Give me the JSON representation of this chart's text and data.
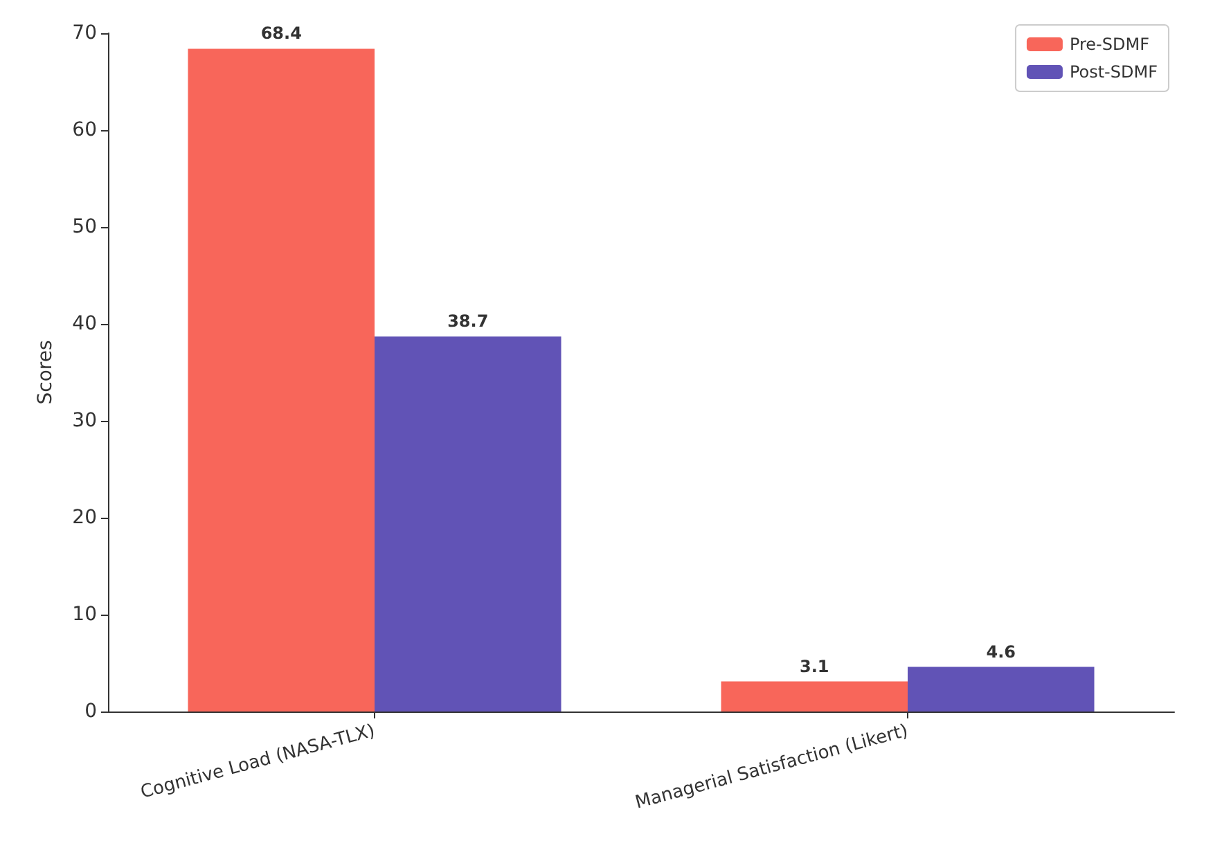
{
  "chart_data": {
    "type": "bar",
    "ylabel": "Scores",
    "categories": [
      "Cognitive Load (NASA-TLX)",
      "Managerial Satisfaction (Likert)"
    ],
    "series": [
      {
        "name": "Pre-SDMF",
        "color": "#f8665a",
        "values": [
          68.4,
          3.1
        ]
      },
      {
        "name": "Post-SDMF",
        "color": "#6153b6",
        "values": [
          38.7,
          4.6
        ]
      }
    ],
    "ylim": [
      0,
      70
    ],
    "yticks": [
      0,
      10,
      20,
      30,
      40,
      50,
      60,
      70
    ],
    "grid": false,
    "legend": "top right",
    "data_labels": true
  }
}
